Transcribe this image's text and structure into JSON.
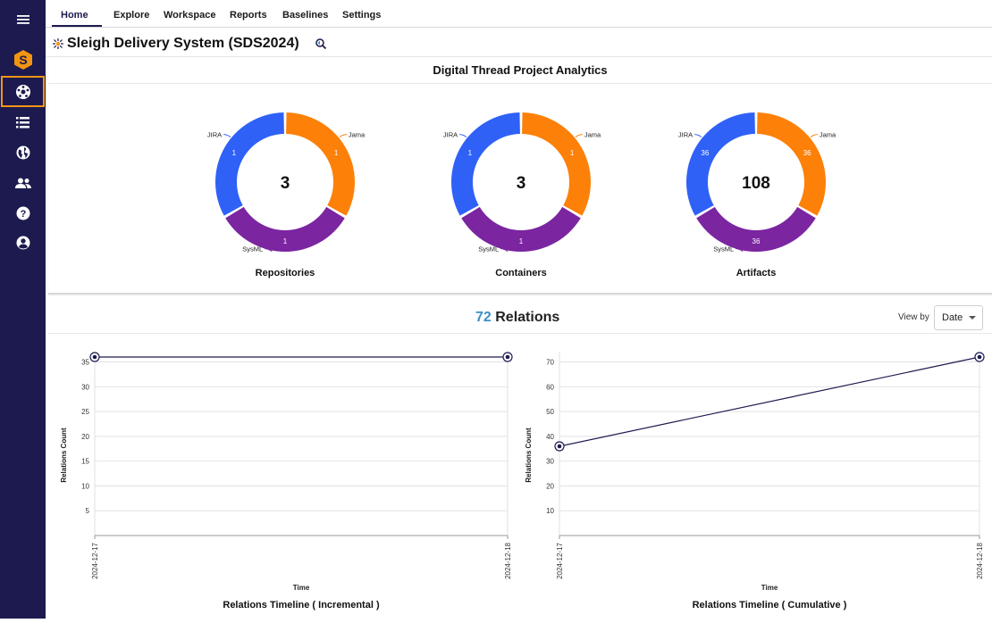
{
  "colors": {
    "sidebar": "#1c1a4f",
    "accent": "#f29513",
    "jira": "#2f61f6",
    "jama": "#fd8008",
    "sysml": "#7b25a1",
    "line": "#1c1a4f",
    "count": "#3d8fc4"
  },
  "sidebar": {
    "items": [
      {
        "icon": "menu-icon"
      },
      {
        "icon": "app-logo-icon"
      },
      {
        "icon": "digital-thread-icon",
        "active": true
      },
      {
        "icon": "list-icon"
      },
      {
        "icon": "globe-icon"
      },
      {
        "icon": "users-icon"
      },
      {
        "icon": "help-icon"
      },
      {
        "icon": "account-icon"
      }
    ]
  },
  "nav": {
    "tabs": [
      {
        "label": "Home",
        "active": true
      },
      {
        "label": "Explore"
      },
      {
        "label": "Workspace"
      },
      {
        "label": "Reports"
      },
      {
        "label": "Baselines"
      },
      {
        "label": "Settings"
      }
    ]
  },
  "page": {
    "title": "Sleigh Delivery System (SDS2024)"
  },
  "analytics": {
    "header": "Digital Thread Project Analytics",
    "donuts": [
      {
        "caption": "Repositories",
        "total": "3",
        "slices": [
          {
            "label": "JIRA",
            "value": 1
          },
          {
            "label": "Jama",
            "value": 1
          },
          {
            "label": "SysML",
            "value": 1
          }
        ]
      },
      {
        "caption": "Containers",
        "total": "3",
        "slices": [
          {
            "label": "JIRA",
            "value": 1
          },
          {
            "label": "Jama",
            "value": 1
          },
          {
            "label": "SysML",
            "value": 1
          }
        ]
      },
      {
        "caption": "Artifacts",
        "total": "108",
        "slices": [
          {
            "label": "JIRA",
            "value": 36
          },
          {
            "label": "Jama",
            "value": 36
          },
          {
            "label": "SysML",
            "value": 36
          }
        ]
      }
    ]
  },
  "relations": {
    "count": "72",
    "label": "Relations",
    "view_by_label": "View by",
    "view_by_value": "Date"
  },
  "chart_data": [
    {
      "type": "pie",
      "title": "Repositories",
      "center_label": "3",
      "categories": [
        "JIRA",
        "Jama",
        "SysML"
      ],
      "values": [
        1,
        1,
        1
      ]
    },
    {
      "type": "pie",
      "title": "Containers",
      "center_label": "3",
      "categories": [
        "JIRA",
        "Jama",
        "SysML"
      ],
      "values": [
        1,
        1,
        1
      ]
    },
    {
      "type": "pie",
      "title": "Artifacts",
      "center_label": "108",
      "categories": [
        "JIRA",
        "Jama",
        "SysML"
      ],
      "values": [
        36,
        36,
        36
      ]
    },
    {
      "type": "line",
      "title": "Relations Timeline ( Incremental )",
      "xlabel": "Time",
      "ylabel": "Relations Count",
      "x": [
        "2024-12-17",
        "2024-12-18"
      ],
      "y": [
        36,
        36
      ],
      "ylim": [
        0,
        36
      ],
      "yticks": [
        5,
        10,
        15,
        20,
        25,
        30,
        35
      ],
      "grid": true
    },
    {
      "type": "line",
      "title": "Relations Timeline ( Cumulative )",
      "xlabel": "Time",
      "ylabel": "Relations Count",
      "x": [
        "2024-12-17",
        "2024-12-18"
      ],
      "y": [
        36,
        72
      ],
      "ylim": [
        0,
        72
      ],
      "yticks": [
        10,
        20,
        30,
        40,
        50,
        60,
        70
      ],
      "grid": true
    }
  ]
}
